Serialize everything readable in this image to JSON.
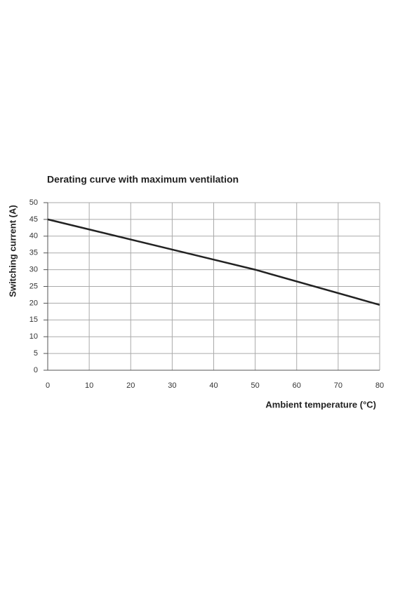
{
  "chart_data": {
    "type": "line",
    "title": "Derating curve with maximum ventilation",
    "x_label": "Ambient temperature (°C)",
    "y_label": "Switching current (A)",
    "x": [
      0,
      50,
      80
    ],
    "series": [
      {
        "name": "Derating curve",
        "color": "#222222",
        "values": [
          45,
          30,
          19.5
        ]
      }
    ],
    "xlim": [
      0,
      80
    ],
    "xticks": [
      0,
      10,
      20,
      30,
      40,
      50,
      60,
      70,
      80
    ],
    "ylim": [
      0,
      50
    ],
    "yticks": [
      0,
      5,
      10,
      15,
      20,
      25,
      30,
      35,
      40,
      45,
      50
    ],
    "grid": true
  }
}
